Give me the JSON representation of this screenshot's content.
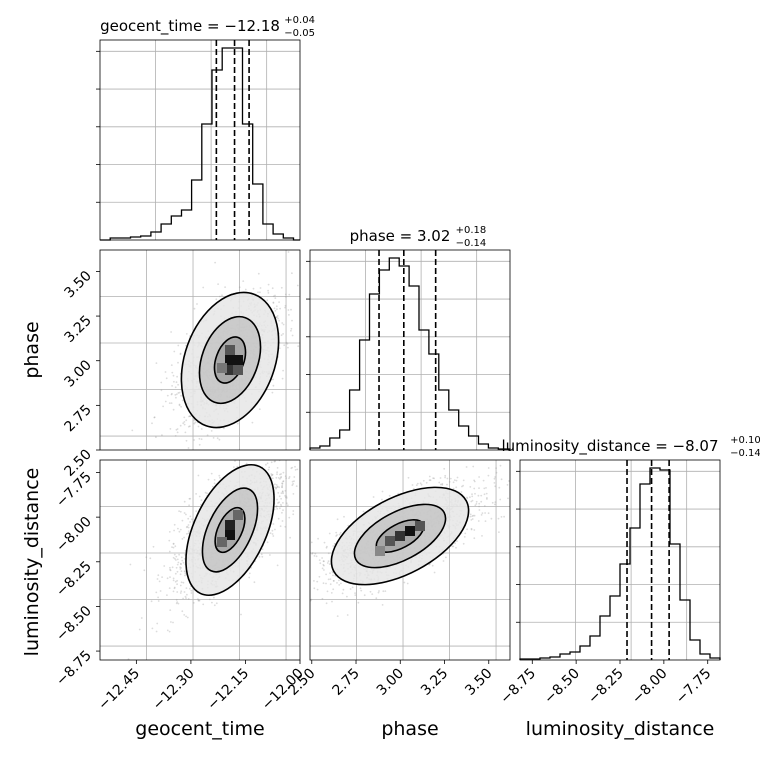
{
  "chart_data": [
    {
      "type": "histogram",
      "parameter": "geocent_time",
      "title_prefix": "geocent_time = ",
      "title_value": "−12.18",
      "title_plus": "+0.04",
      "title_minus": "−0.05",
      "xlim": [
        -12.55,
        -12.0
      ],
      "quantiles": [
        -12.23,
        -12.18,
        -12.14
      ],
      "bin_edges": [
        -12.55,
        -12.522,
        -12.494,
        -12.466,
        -12.438,
        -12.41,
        -12.382,
        -12.354,
        -12.326,
        -12.298,
        -12.27,
        -12.242,
        -12.214,
        -12.186,
        -12.158,
        -12.13,
        -12.102,
        -12.074,
        -12.046,
        -12.018,
        -12.0
      ],
      "counts": [
        0,
        0.01,
        0.01,
        0.015,
        0.02,
        0.04,
        0.08,
        0.12,
        0.15,
        0.3,
        0.58,
        0.85,
        0.96,
        0.96,
        0.58,
        0.28,
        0.08,
        0.03,
        0.01,
        0
      ]
    },
    {
      "type": "scatter_density",
      "x_parameter": "geocent_time",
      "y_parameter": "phase",
      "xlim": [
        -12.55,
        -12.0
      ],
      "ylim": [
        2.5,
        3.62
      ],
      "yticks": [
        "2.50",
        "2.75",
        "3.00",
        "3.25",
        "3.50"
      ],
      "ylabel": "phase"
    },
    {
      "type": "histogram",
      "parameter": "phase",
      "title_prefix": "phase = ",
      "title_value": "3.02",
      "title_plus": "+0.18",
      "title_minus": "−0.14",
      "xlim": [
        2.49,
        3.62
      ],
      "quantiles": [
        2.88,
        3.02,
        3.2
      ],
      "bin_edges": [
        2.49,
        2.546,
        2.602,
        2.658,
        2.714,
        2.77,
        2.826,
        2.882,
        2.938,
        2.994,
        3.05,
        3.106,
        3.162,
        3.218,
        3.274,
        3.33,
        3.386,
        3.442,
        3.498,
        3.554,
        3.62
      ],
      "counts": [
        0.01,
        0.02,
        0.06,
        0.1,
        0.3,
        0.55,
        0.78,
        0.9,
        0.96,
        0.92,
        0.82,
        0.6,
        0.48,
        0.3,
        0.2,
        0.12,
        0.07,
        0.03,
        0.01,
        0.005
      ]
    },
    {
      "type": "scatter_density",
      "x_parameter": "geocent_time",
      "y_parameter": "luminosity_distance",
      "xlim": [
        -12.55,
        -12.0
      ],
      "ylim": [
        -8.8,
        -7.68
      ],
      "yticks": [
        "−8.75",
        "−8.50",
        "−8.25",
        "−8.00",
        "−7.75"
      ],
      "ylabel": "luminosity_distance",
      "xticks": [
        "−12.45",
        "−12.30",
        "−12.15",
        "−12.00"
      ],
      "xlabel": "geocent_time"
    },
    {
      "type": "scatter_density",
      "x_parameter": "phase",
      "y_parameter": "luminosity_distance",
      "xlim": [
        2.49,
        3.62
      ],
      "ylim": [
        -8.8,
        -7.68
      ],
      "xticks": [
        "2.50",
        "2.75",
        "3.00",
        "3.25",
        "3.50"
      ],
      "xlabel": "phase"
    },
    {
      "type": "histogram",
      "parameter": "luminosity_distance",
      "title_prefix": "luminosity_distance = ",
      "title_value": "−8.07",
      "title_plus": "+0.10",
      "title_minus": "−0.14",
      "xlim": [
        -8.82,
        -7.68
      ],
      "quantiles": [
        -8.21,
        -8.07,
        -7.97
      ],
      "bin_edges": [
        -8.82,
        -8.763,
        -8.706,
        -8.649,
        -8.592,
        -8.535,
        -8.478,
        -8.421,
        -8.364,
        -8.307,
        -8.25,
        -8.193,
        -8.136,
        -8.079,
        -8.022,
        -7.965,
        -7.908,
        -7.851,
        -7.794,
        -7.737,
        -7.68
      ],
      "counts": [
        0.005,
        0.005,
        0.01,
        0.015,
        0.03,
        0.04,
        0.07,
        0.12,
        0.22,
        0.32,
        0.48,
        0.66,
        0.88,
        0.96,
        0.95,
        0.58,
        0.3,
        0.1,
        0.03,
        0.01
      ],
      "xticks": [
        "−8.75",
        "−8.50",
        "−8.25",
        "−8.00",
        "−7.75"
      ],
      "xlabel": "luminosity_distance"
    }
  ]
}
